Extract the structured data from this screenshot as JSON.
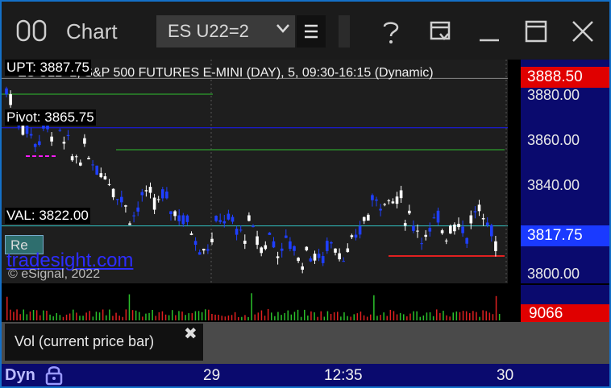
{
  "window": {
    "title": "Chart",
    "symbol": "ES U22=2"
  },
  "chart": {
    "title": "ES U22=2, S&P 500 FUTURES E-MINI (DAY), 5, 09:30-16:15 (Dynamic)",
    "upt_label": "UPT: 3887.75",
    "pivot_label": "Pivot: 3865.75",
    "val_label": "VAL: 3822.00",
    "watermark": "tradesight.com",
    "copyright": "© eSignal, 2022",
    "re_button": "Re",
    "price_axis": [
      "3880.00",
      "3860.00",
      "3840.00",
      "3800.00"
    ],
    "current_high_tag": "3888.50",
    "current_price_tag": "3817.75",
    "volume_tag": "9066",
    "colors": {
      "up_bar": "#ffffff",
      "down_bar": "#1f3fff",
      "axis_bg": "#0a0a6e",
      "high_tag": "#e00000",
      "price_tag": "#1a3aff",
      "count_magenta": "#ff1aff",
      "count_green": "#30c030"
    }
  },
  "volume_panel": {
    "label": "Vol (current price bar)",
    "close_icon": "close-icon"
  },
  "time_axis": {
    "mode": "Dyn",
    "labels": [
      "29",
      "12:35",
      "30"
    ]
  },
  "chart_data": {
    "type": "candlestick",
    "y_axis_ticks": [
      3880,
      3860,
      3840,
      3800
    ],
    "levels": {
      "UPT": 3887.75,
      "Pivot": 3865.75,
      "VAL": 3822.0
    },
    "last_price": 3817.75,
    "last_volume": 9066
  }
}
